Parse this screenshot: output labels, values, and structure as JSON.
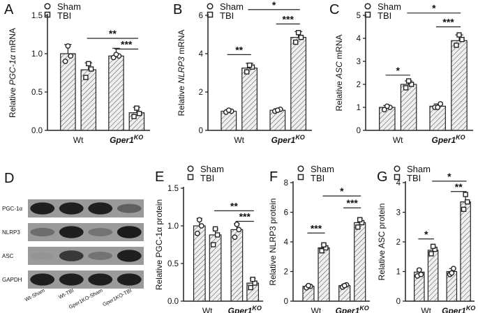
{
  "legend": {
    "sham": "Sham",
    "tbi": "TBI"
  },
  "colors": {
    "bar_fill": "#e8e8e8",
    "stroke": "#222222",
    "band_bg": "#9a9a9a",
    "band_dark": "#1c1c1c"
  },
  "blot": {
    "panel_letter": "D",
    "proteins": [
      "PGC-1α",
      "NLRP3",
      "ASC",
      "GAPDH"
    ],
    "lanes": [
      "Wt-Sham",
      "Wt-TBI",
      "Gper1KO-Sham",
      "Gper1KO-TBI"
    ],
    "intensity": [
      [
        0.95,
        0.95,
        0.95,
        0.45
      ],
      [
        0.35,
        0.95,
        0.3,
        0.98
      ],
      [
        0.05,
        0.75,
        0.3,
        0.95
      ],
      [
        0.95,
        0.95,
        0.95,
        0.95
      ]
    ]
  },
  "chart_data": [
    {
      "id": "A",
      "type": "bar",
      "ylabel_prefix": "Relative ",
      "ylabel_italic": "PGC-1α",
      "ylabel_suffix": " mRNA",
      "ylim": [
        0,
        1.5
      ],
      "yticks": [
        "0.0",
        "0.5",
        "1.0",
        "1.5"
      ],
      "ytick_values": [
        0,
        0.5,
        1.0,
        1.5
      ],
      "categories": [
        "Wt",
        "Gper1KO"
      ],
      "category_labels": [
        {
          "text": "Wt",
          "italic": false,
          "sup": ""
        },
        {
          "text": "Gper1",
          "italic": true,
          "sup": "KO"
        }
      ],
      "series": [
        {
          "name": "Sham",
          "values": [
            1.0,
            0.97
          ],
          "err": [
            0.12,
            0.1
          ],
          "points": [
            [
              0.9,
              0.97,
              1.1
            ],
            [
              0.95,
              0.97,
              0.99
            ]
          ]
        },
        {
          "name": "TBI",
          "values": [
            0.79,
            0.23
          ],
          "err": [
            0.09,
            0.07
          ],
          "points": [
            [
              0.69,
              0.8,
              0.87
            ],
            [
              0.18,
              0.22,
              0.29
            ]
          ]
        }
      ],
      "significance": [
        {
          "from": 3,
          "to": 1,
          "y": 1.2,
          "label": "**"
        },
        {
          "from": 3,
          "to": 2,
          "y": 1.06,
          "label": "***"
        }
      ]
    },
    {
      "id": "B",
      "type": "bar",
      "ylabel_prefix": "Relative ",
      "ylabel_italic": "NLRP3",
      "ylabel_suffix": " mRNA",
      "ylim": [
        0,
        6
      ],
      "yticks": [
        "0",
        "2",
        "4",
        "6"
      ],
      "ytick_values": [
        0,
        2,
        4,
        6
      ],
      "categories": [
        "Wt",
        "Gper1KO"
      ],
      "category_labels": [
        {
          "text": "Wt",
          "italic": false,
          "sup": ""
        },
        {
          "text": "Gper1",
          "italic": true,
          "sup": "KO"
        }
      ],
      "series": [
        {
          "name": "Sham",
          "values": [
            1.0,
            1.05
          ],
          "err": [
            0.08,
            0.08
          ],
          "points": [
            [
              0.95,
              1.0,
              1.05
            ],
            [
              1.0,
              1.1,
              1.05
            ]
          ]
        },
        {
          "name": "TBI",
          "values": [
            3.25,
            4.85
          ],
          "err": [
            0.25,
            0.3
          ],
          "points": [
            [
              3.05,
              3.3,
              3.4
            ],
            [
              4.6,
              4.85,
              5.1
            ]
          ]
        }
      ],
      "significance": [
        {
          "from": 0,
          "to": 1,
          "y": 3.95,
          "label": "**"
        },
        {
          "from": 2,
          "to": 3,
          "y": 5.55,
          "label": "***"
        },
        {
          "from": 1,
          "to": 3,
          "y": 6.3,
          "label": "*"
        }
      ]
    },
    {
      "id": "C",
      "type": "bar",
      "ylabel_prefix": "Relative ",
      "ylabel_italic": "ASC",
      "ylabel_suffix": " mRNA",
      "ylim": [
        0,
        5
      ],
      "yticks": [
        "0",
        "1",
        "2",
        "3",
        "4",
        "5"
      ],
      "ytick_values": [
        0,
        1,
        2,
        3,
        4,
        5
      ],
      "categories": [
        "Wt",
        "Gper1KO"
      ],
      "category_labels": [
        {
          "text": "Wt",
          "italic": false,
          "sup": ""
        },
        {
          "text": "Gper1",
          "italic": true,
          "sup": "KO"
        }
      ],
      "series": [
        {
          "name": "Sham",
          "values": [
            1.0,
            1.05
          ],
          "err": [
            0.08,
            0.1
          ],
          "points": [
            [
              0.9,
              1.0,
              1.05
            ],
            [
              1.0,
              1.15,
              1.0
            ]
          ]
        },
        {
          "name": "TBI",
          "values": [
            2.0,
            3.9
          ],
          "err": [
            0.15,
            0.25
          ],
          "points": [
            [
              1.85,
              2.0,
              2.15
            ],
            [
              3.7,
              3.95,
              4.15
            ]
          ]
        }
      ],
      "significance": [
        {
          "from": 0,
          "to": 1,
          "y": 2.4,
          "label": "*"
        },
        {
          "from": 2,
          "to": 3,
          "y": 4.5,
          "label": "***"
        },
        {
          "from": 1,
          "to": 3,
          "y": 5.1,
          "label": "*"
        }
      ]
    },
    {
      "id": "E",
      "type": "bar",
      "ylabel_prefix": "Relative PGC-1α protein",
      "ylabel_italic": "",
      "ylabel_suffix": "",
      "ylim": [
        0,
        1.5
      ],
      "yticks": [
        "0.0",
        "0.5",
        "1.0",
        "1.5"
      ],
      "ytick_values": [
        0,
        0.5,
        1.0,
        1.5
      ],
      "categories": [
        "Wt",
        "Gper1KO"
      ],
      "category_labels": [
        {
          "text": "Wt",
          "italic": false,
          "sup": ""
        },
        {
          "text": "Gper1",
          "italic": true,
          "sup": "KO"
        }
      ],
      "series": [
        {
          "name": "Sham",
          "values": [
            1.0,
            0.95
          ],
          "err": [
            0.1,
            0.08
          ],
          "points": [
            [
              0.9,
              1.0,
              1.08
            ],
            [
              0.85,
              0.95,
              1.02
            ]
          ]
        },
        {
          "name": "TBI",
          "values": [
            0.88,
            0.24
          ],
          "err": [
            0.08,
            0.06
          ],
          "points": [
            [
              0.75,
              0.88,
              0.96
            ],
            [
              0.18,
              0.24,
              0.29
            ]
          ]
        }
      ],
      "significance": [
        {
          "from": 3,
          "to": 1,
          "y": 1.2,
          "label": "**"
        },
        {
          "from": 3,
          "to": 2,
          "y": 1.06,
          "label": "***"
        }
      ]
    },
    {
      "id": "F",
      "type": "bar",
      "ylabel_prefix": "Relative NLRP3 protein",
      "ylabel_italic": "",
      "ylabel_suffix": "",
      "ylim": [
        0,
        8
      ],
      "yticks": [
        "0",
        "2",
        "4",
        "6",
        "8"
      ],
      "ytick_values": [
        0,
        2,
        4,
        6,
        8
      ],
      "categories": [
        "Wt",
        "Gper1KO"
      ],
      "category_labels": [
        {
          "text": "Wt",
          "italic": false,
          "sup": ""
        },
        {
          "text": "Gper1",
          "italic": true,
          "sup": "KO"
        }
      ],
      "series": [
        {
          "name": "Sham",
          "values": [
            1.0,
            1.05
          ],
          "err": [
            0.1,
            0.1
          ],
          "points": [
            [
              0.9,
              1.0,
              1.05
            ],
            [
              0.95,
              1.1,
              1.05
            ]
          ]
        },
        {
          "name": "TBI",
          "values": [
            3.6,
            5.3
          ],
          "err": [
            0.25,
            0.3
          ],
          "points": [
            [
              3.4,
              3.6,
              3.8
            ],
            [
              5.0,
              5.3,
              5.5
            ]
          ]
        }
      ],
      "significance": [
        {
          "from": 0,
          "to": 1,
          "y": 4.6,
          "label": "***"
        },
        {
          "from": 2,
          "to": 3,
          "y": 6.3,
          "label": "***"
        },
        {
          "from": 1,
          "to": 3,
          "y": 7.1,
          "label": "*"
        }
      ]
    },
    {
      "id": "G",
      "type": "bar",
      "ylabel_prefix": "Relative ASC protein",
      "ylabel_italic": "",
      "ylabel_suffix": "",
      "ylim": [
        0,
        4
      ],
      "yticks": [
        "0",
        "1",
        "2",
        "3",
        "4"
      ],
      "ytick_values": [
        0,
        1,
        2,
        3,
        4
      ],
      "categories": [
        "Wt",
        "Gper1KO"
      ],
      "category_labels": [
        {
          "text": "Wt",
          "italic": false,
          "sup": ""
        },
        {
          "text": "Gper1",
          "italic": true,
          "sup": "KO"
        }
      ],
      "series": [
        {
          "name": "Sham",
          "values": [
            0.98,
            1.0
          ],
          "err": [
            0.12,
            0.1
          ],
          "points": [
            [
              0.85,
              0.9,
              1.05
            ],
            [
              0.9,
              1.1,
              0.95
            ]
          ]
        },
        {
          "name": "TBI",
          "values": [
            1.72,
            3.35
          ],
          "err": [
            0.15,
            0.25
          ],
          "points": [
            [
              1.6,
              1.75,
              1.85
            ],
            [
              3.1,
              3.35,
              3.6
            ]
          ]
        }
      ],
      "significance": [
        {
          "from": 0,
          "to": 1,
          "y": 2.1,
          "label": "*"
        },
        {
          "from": 2,
          "to": 3,
          "y": 3.7,
          "label": "**"
        },
        {
          "from": 1,
          "to": 3,
          "y": 4.05,
          "label": "*"
        }
      ]
    }
  ]
}
